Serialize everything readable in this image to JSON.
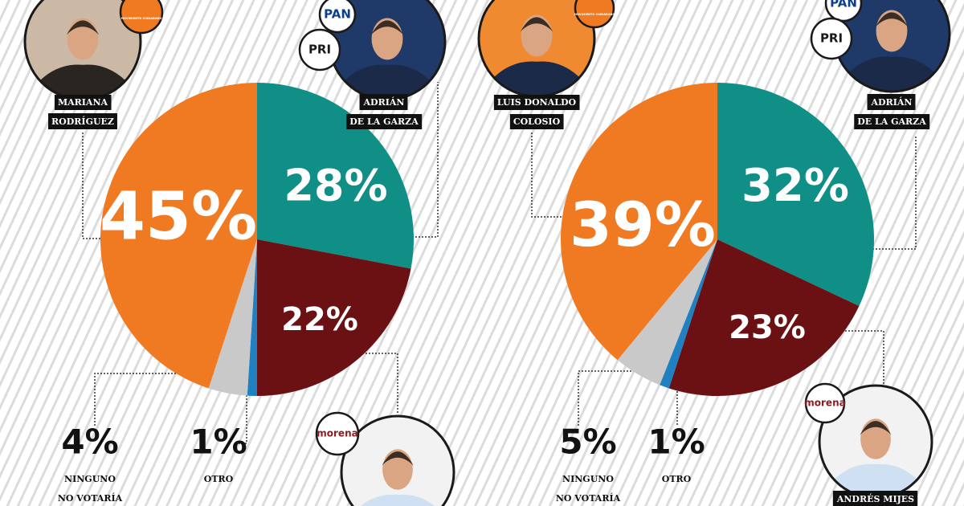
{
  "chart_data": [
    {
      "type": "pie",
      "categories": [
        [
          "ADRIÁN",
          "DE LA GARZA"
        ],
        null,
        [
          "OTRO"
        ],
        [
          "NINGUNO",
          "NO VOTARÍA"
        ],
        [
          "MARIANA",
          "RODRÍGUEZ"
        ]
      ],
      "values": [
        28,
        22,
        1,
        4,
        45
      ],
      "value_labels": [
        "28%",
        "22%",
        "1%",
        "4%",
        "45%"
      ],
      "colors": [
        "#0f8f86",
        "#6b1114",
        "#1f80c2",
        "#c9c9c9",
        "#f07a22"
      ],
      "parties": [
        [
          "PAN",
          "PRI"
        ],
        [
          "morena"
        ],
        [],
        [],
        [
          "MOVIMIENTO CIUDADANO"
        ]
      ]
    },
    {
      "type": "pie",
      "categories": [
        [
          "ADRIÁN",
          "DE LA GARZA"
        ],
        [
          "ANDRÉS MIJES"
        ],
        [
          "OTRO"
        ],
        [
          "NINGUNO",
          "NO VOTARÍA"
        ],
        [
          "LUIS DONALDO",
          "COLOSIO"
        ]
      ],
      "values": [
        32,
        23,
        1,
        5,
        39
      ],
      "value_labels": [
        "32%",
        "23%",
        "1%",
        "5%",
        "39%"
      ],
      "colors": [
        "#0f8f86",
        "#6b1114",
        "#1f80c2",
        "#c9c9c9",
        "#f07a22"
      ],
      "parties": [
        [
          "PAN",
          "PRI"
        ],
        [
          "morena"
        ],
        [],
        [],
        [
          "MOVIMIENTO CIUDADANO"
        ]
      ]
    }
  ]
}
